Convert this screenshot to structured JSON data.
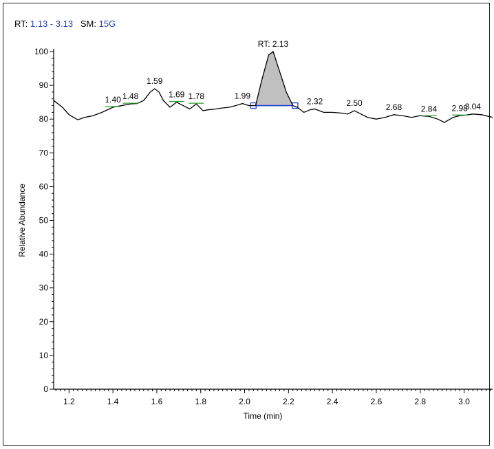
{
  "header": {
    "rt_label": "RT:",
    "rt_range": "1.13 - 3.13",
    "sm_label": "SM:",
    "sm_value": "15G"
  },
  "colors": {
    "trace": "#000000",
    "peak_fill": "#c0c0c0",
    "baseline": "#1f3fd6",
    "label_tick": "#2e9e2e",
    "header_value": "#2a3fb8"
  },
  "chart_data": {
    "type": "line",
    "title": "",
    "xlabel": "Time (min)",
    "ylabel": "Relative Abundance",
    "xlim": [
      1.13,
      3.13
    ],
    "ylim": [
      0,
      100
    ],
    "x_ticks": [
      "1.2",
      "1.4",
      "1.6",
      "1.8",
      "2.0",
      "2.2",
      "2.4",
      "2.6",
      "2.8",
      "3.0"
    ],
    "y_ticks": [
      "0",
      "10",
      "20",
      "30",
      "40",
      "50",
      "60",
      "70",
      "80",
      "90",
      "100"
    ],
    "series": [
      {
        "x": [
          1.13,
          1.17,
          1.2,
          1.24,
          1.27,
          1.31,
          1.35,
          1.4,
          1.44,
          1.48,
          1.51,
          1.54,
          1.57,
          1.59,
          1.61,
          1.63,
          1.66,
          1.69,
          1.72,
          1.75,
          1.78,
          1.81,
          1.84,
          1.87,
          1.9,
          1.93,
          1.96,
          1.99,
          2.02,
          2.05,
          2.08,
          2.11,
          2.13,
          2.16,
          2.19,
          2.22,
          2.24,
          2.27,
          2.3,
          2.32,
          2.36,
          2.4,
          2.44,
          2.47,
          2.5,
          2.53,
          2.56,
          2.6,
          2.64,
          2.68,
          2.72,
          2.76,
          2.8,
          2.84,
          2.88,
          2.91,
          2.95,
          2.98,
          3.01,
          3.04,
          3.08,
          3.13
        ],
        "y": [
          85.5,
          83.5,
          81.3,
          79.8,
          80.5,
          81.0,
          82.0,
          83.5,
          84.0,
          84.5,
          84.6,
          85.5,
          88.0,
          89.0,
          88.0,
          85.5,
          83.5,
          85.0,
          84.0,
          83.0,
          84.5,
          82.5,
          82.8,
          83.0,
          83.3,
          83.5,
          84.0,
          84.6,
          84.0,
          84.0,
          92.0,
          99.0,
          100.0,
          94.0,
          88.0,
          84.0,
          83.5,
          82.0,
          82.8,
          83.0,
          82.0,
          82.0,
          81.8,
          81.5,
          82.5,
          81.5,
          80.5,
          80.0,
          80.5,
          81.3,
          81.0,
          80.5,
          81.0,
          80.8,
          80.0,
          79.0,
          80.5,
          81.0,
          81.2,
          81.5,
          81.3,
          80.5
        ]
      }
    ],
    "integrated_peak": {
      "start": 2.04,
      "apex": 2.13,
      "end": 2.23,
      "baseline_y": 84.0
    },
    "annotations": [
      {
        "x": 1.4,
        "y": 83.5,
        "text": "1.40",
        "tick": true
      },
      {
        "x": 1.48,
        "y": 84.5,
        "text": "1.48",
        "tick": true
      },
      {
        "x": 1.59,
        "y": 89.0,
        "text": "1.59",
        "tick": false
      },
      {
        "x": 1.69,
        "y": 85.0,
        "text": "1.69",
        "tick": true
      },
      {
        "x": 1.78,
        "y": 84.5,
        "text": "1.78",
        "tick": true
      },
      {
        "x": 1.99,
        "y": 84.6,
        "text": "1.99",
        "tick": false
      },
      {
        "x": 2.13,
        "y": 100.0,
        "text": "RT: 2.13",
        "tick": false
      },
      {
        "x": 2.32,
        "y": 83.0,
        "text": "2.32",
        "tick": false
      },
      {
        "x": 2.5,
        "y": 82.5,
        "text": "2.50",
        "tick": false
      },
      {
        "x": 2.68,
        "y": 81.3,
        "text": "2.68",
        "tick": false
      },
      {
        "x": 2.84,
        "y": 80.8,
        "text": "2.84",
        "tick": true
      },
      {
        "x": 2.98,
        "y": 81.0,
        "text": "2.98",
        "tick": true
      },
      {
        "x": 3.04,
        "y": 81.5,
        "text": "3.04",
        "tick": false
      }
    ]
  }
}
